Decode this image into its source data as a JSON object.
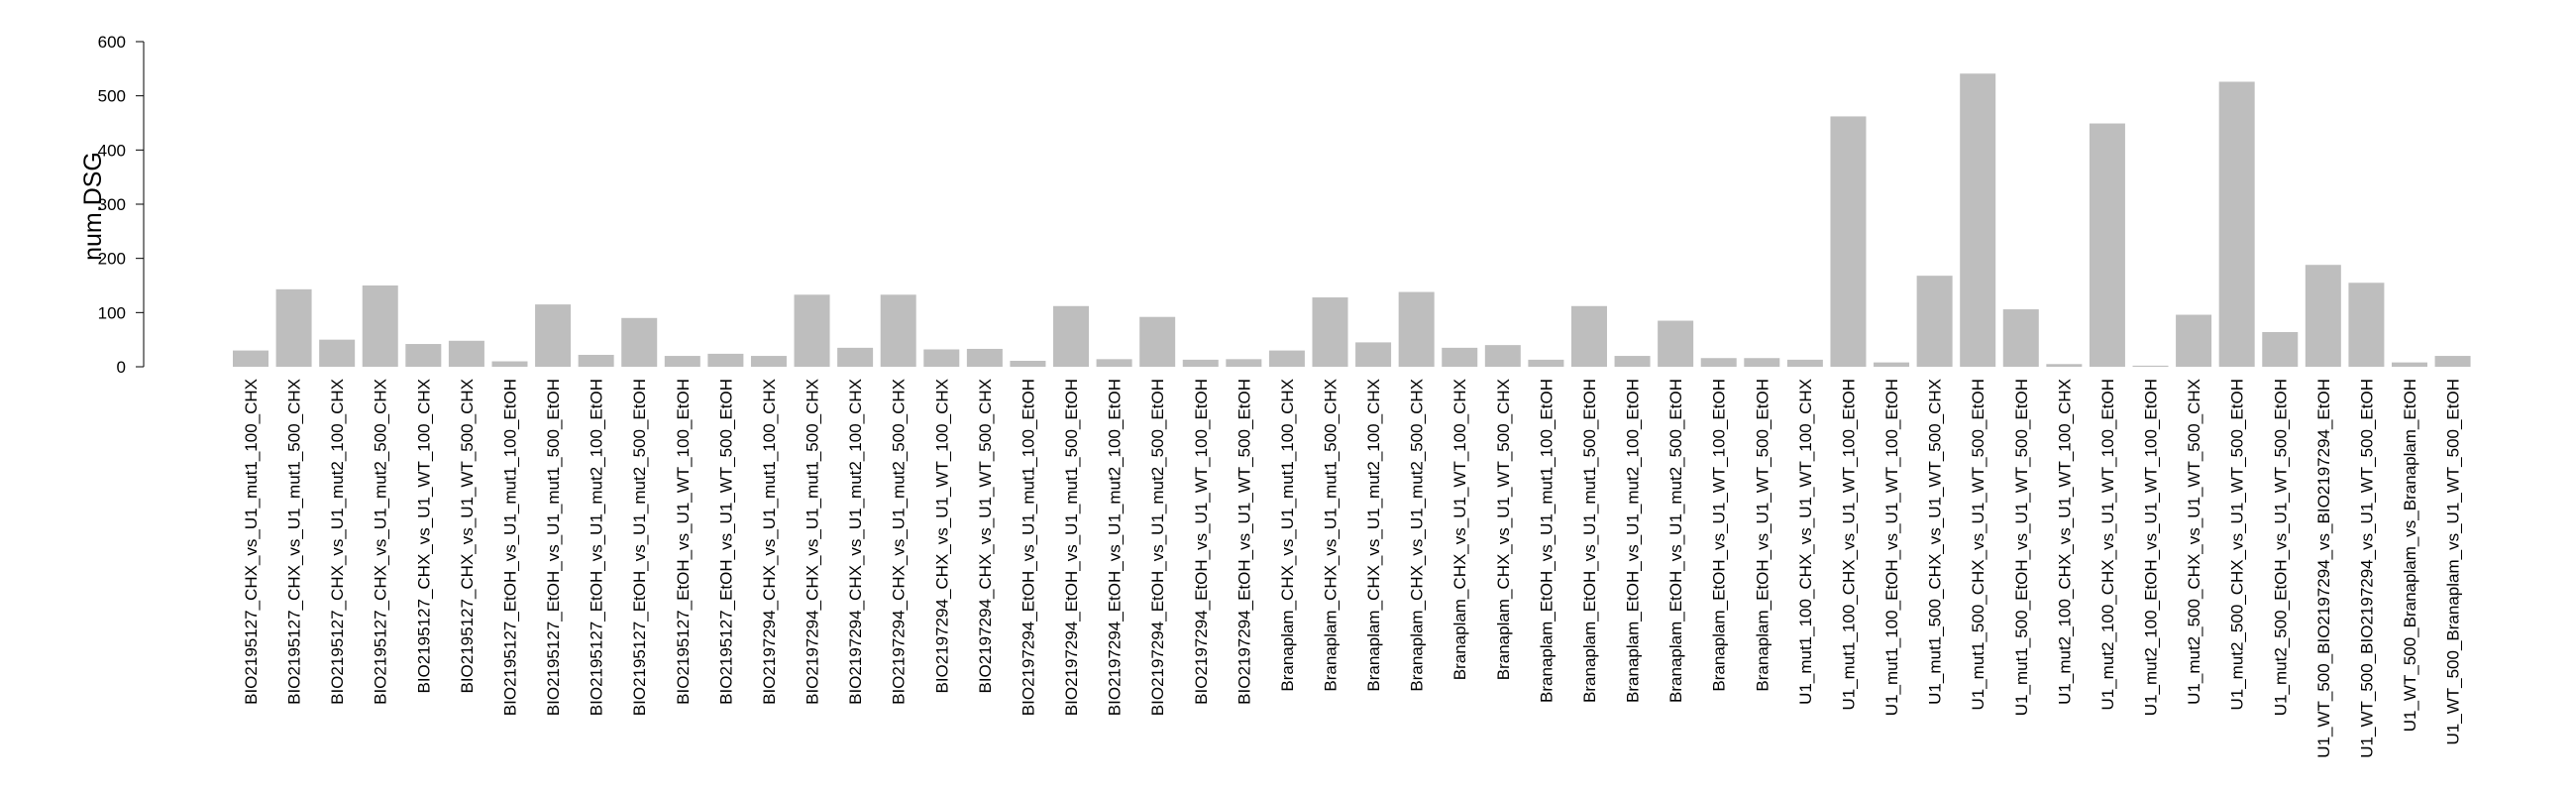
{
  "chart_data": {
    "type": "bar",
    "title": "",
    "xlabel": "",
    "ylabel": "num.DSG",
    "ylim": [
      0,
      600
    ],
    "yticks": [
      0,
      100,
      200,
      300,
      400,
      500,
      600
    ],
    "grid": false,
    "legend": "none",
    "bar_color": "#bebebe",
    "categories": [
      "BIO2195127_CHX_vs_U1_mut1_100_CHX",
      "BIO2195127_CHX_vs_U1_mut1_500_CHX",
      "BIO2195127_CHX_vs_U1_mut2_100_CHX",
      "BIO2195127_CHX_vs_U1_mut2_500_CHX",
      "BIO2195127_CHX_vs_U1_WT_100_CHX",
      "BIO2195127_CHX_vs_U1_WT_500_CHX",
      "BIO2195127_EtOH_vs_U1_mut1_100_EtOH",
      "BIO2195127_EtOH_vs_U1_mut1_500_EtOH",
      "BIO2195127_EtOH_vs_U1_mut2_100_EtOH",
      "BIO2195127_EtOH_vs_U1_mut2_500_EtOH",
      "BIO2195127_EtOH_vs_U1_WT_100_EtOH",
      "BIO2195127_EtOH_vs_U1_WT_500_EtOH",
      "BIO2197294_CHX_vs_U1_mut1_100_CHX",
      "BIO2197294_CHX_vs_U1_mut1_500_CHX",
      "BIO2197294_CHX_vs_U1_mut2_100_CHX",
      "BIO2197294_CHX_vs_U1_mut2_500_CHX",
      "BIO2197294_CHX_vs_U1_WT_100_CHX",
      "BIO2197294_CHX_vs_U1_WT_500_CHX",
      "BIO2197294_EtOH_vs_U1_mut1_100_EtOH",
      "BIO2197294_EtOH_vs_U1_mut1_500_EtOH",
      "BIO2197294_EtOH_vs_U1_mut2_100_EtOH",
      "BIO2197294_EtOH_vs_U1_mut2_500_EtOH",
      "BIO2197294_EtOH_vs_U1_WT_100_EtOH",
      "BIO2197294_EtOH_vs_U1_WT_500_EtOH",
      "Branaplam_CHX_vs_U1_mut1_100_CHX",
      "Branaplam_CHX_vs_U1_mut1_500_CHX",
      "Branaplam_CHX_vs_U1_mut2_100_CHX",
      "Branaplam_CHX_vs_U1_mut2_500_CHX",
      "Branaplam_CHX_vs_U1_WT_100_CHX",
      "Branaplam_CHX_vs_U1_WT_500_CHX",
      "Branaplam_EtOH_vs_U1_mut1_100_EtOH",
      "Branaplam_EtOH_vs_U1_mut1_500_EtOH",
      "Branaplam_EtOH_vs_U1_mut2_100_EtOH",
      "Branaplam_EtOH_vs_U1_mut2_500_EtOH",
      "Branaplam_EtOH_vs_U1_WT_100_EtOH",
      "Branaplam_EtOH_vs_U1_WT_500_EtOH",
      "U1_mut1_100_CHX_vs_U1_WT_100_CHX",
      "U1_mut1_100_CHX_vs_U1_WT_100_EtOH",
      "U1_mut1_100_EtOH_vs_U1_WT_100_EtOH",
      "U1_mut1_500_CHX_vs_U1_WT_500_CHX",
      "U1_mut1_500_CHX_vs_U1_WT_500_EtOH",
      "U1_mut1_500_EtOH_vs_U1_WT_500_EtOH",
      "U1_mut2_100_CHX_vs_U1_WT_100_CHX",
      "U1_mut2_100_CHX_vs_U1_WT_100_EtOH",
      "U1_mut2_100_EtOH_vs_U1_WT_100_EtOH",
      "U1_mut2_500_CHX_vs_U1_WT_500_CHX",
      "U1_mut2_500_CHX_vs_U1_WT_500_EtOH",
      "U1_mut2_500_EtOH_vs_U1_WT_500_EtOH",
      "U1_WT_500_BIO2197294_vs_BIO2197294_EtOH",
      "U1_WT_500_BIO2197294_vs_U1_WT_500_EtOH",
      "U1_WT_500_Branaplam_vs_Branaplam_EtOH",
      "U1_WT_500_Branaplam_vs_U1_WT_500_EtOH"
    ],
    "values": [
      30,
      143,
      50,
      150,
      42,
      48,
      10,
      115,
      22,
      90,
      20,
      24,
      20,
      133,
      35,
      133,
      32,
      33,
      11,
      112,
      14,
      92,
      13,
      14,
      30,
      128,
      45,
      138,
      35,
      40,
      13,
      112,
      20,
      85,
      16,
      16,
      13,
      462,
      8,
      168,
      541,
      106,
      5,
      449,
      2,
      96,
      526,
      64,
      188,
      155,
      8,
      20
    ]
  }
}
